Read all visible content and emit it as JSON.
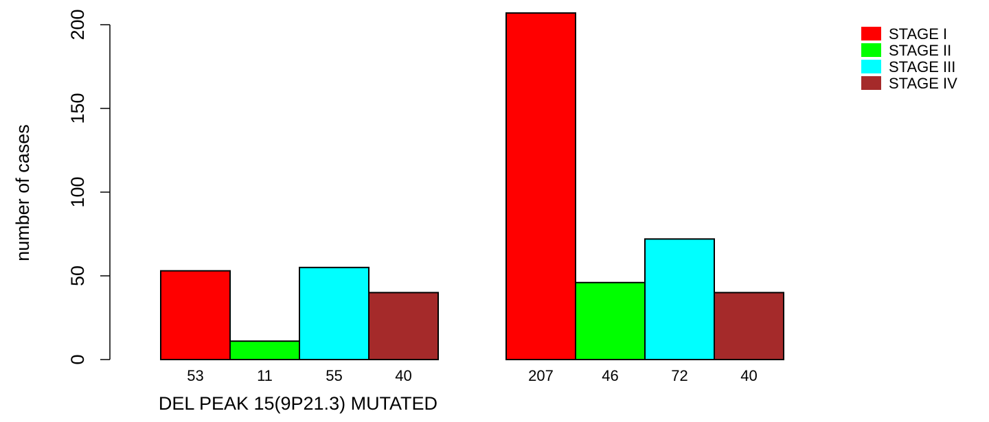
{
  "chart_data": {
    "type": "bar",
    "title": "",
    "xlabel": "DEL PEAK 15(9P21.3) MUTATED",
    "ylabel": "number of cases",
    "ylim": [
      0,
      200
    ],
    "yticks": [
      0,
      50,
      100,
      150,
      200
    ],
    "grid": false,
    "legend_position": "top-right",
    "groups": [
      "",
      ""
    ],
    "series": [
      {
        "name": "STAGE I",
        "color": "#ff0000",
        "values": [
          53,
          207
        ]
      },
      {
        "name": "STAGE II",
        "color": "#00ff00",
        "values": [
          11,
          46
        ]
      },
      {
        "name": "STAGE III",
        "color": "#00ffff",
        "values": [
          55,
          72
        ]
      },
      {
        "name": "STAGE IV",
        "color": "#a52a2a",
        "values": [
          40,
          40
        ]
      }
    ]
  }
}
